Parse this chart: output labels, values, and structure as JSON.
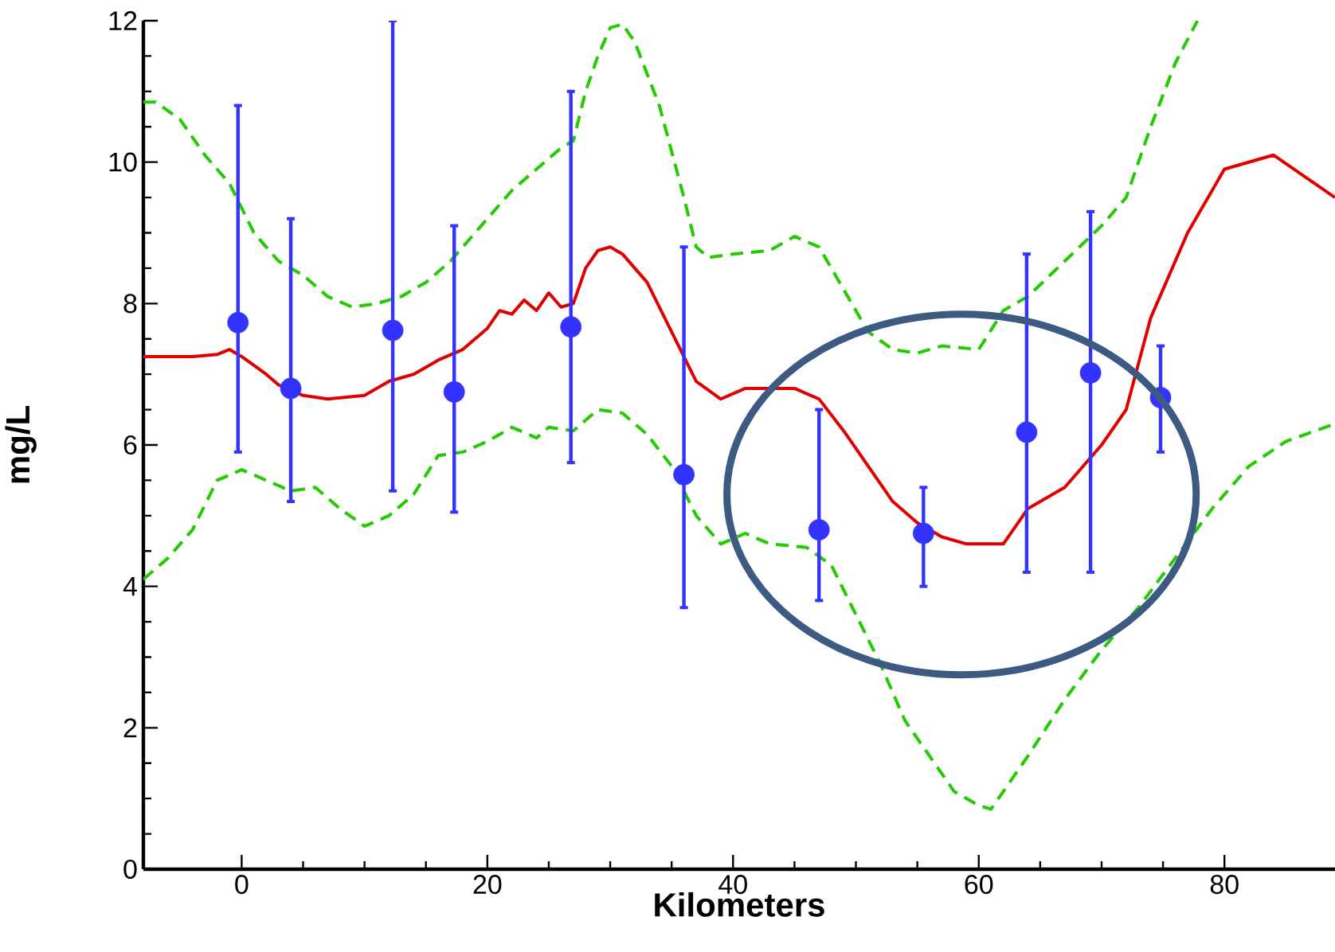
{
  "chart_data": {
    "type": "line",
    "xlabel": "Kilometers",
    "ylabel": "mg/L",
    "xlim": [
      -8,
      89
    ],
    "ylim": [
      0,
      12
    ],
    "xticks": [
      0,
      20,
      40,
      60,
      80
    ],
    "yticks": [
      0,
      2,
      4,
      6,
      8,
      10,
      12
    ],
    "series": [
      {
        "color": "#e00000",
        "line_style": "solid",
        "x": [
          -8,
          -4,
          -2,
          -1,
          0,
          2,
          3,
          5,
          7,
          10,
          12,
          14,
          16,
          18,
          20,
          21,
          22,
          23,
          24,
          25,
          26,
          27,
          28,
          29,
          30,
          31,
          33,
          35,
          37,
          39,
          41,
          43,
          45,
          47,
          49,
          51,
          53,
          55,
          57,
          59,
          61,
          62,
          64,
          67,
          70,
          72,
          74,
          77,
          80,
          84,
          89
        ],
        "values": [
          7.25,
          7.25,
          7.28,
          7.35,
          7.25,
          7.0,
          6.85,
          6.7,
          6.65,
          6.7,
          6.9,
          7.0,
          7.2,
          7.35,
          7.65,
          7.9,
          7.85,
          8.05,
          7.9,
          8.15,
          7.95,
          8.0,
          8.5,
          8.75,
          8.8,
          8.7,
          8.3,
          7.6,
          6.9,
          6.65,
          6.8,
          6.8,
          6.8,
          6.65,
          6.2,
          5.7,
          5.2,
          4.9,
          4.7,
          4.6,
          4.6,
          4.6,
          5.1,
          5.4,
          6.0,
          6.5,
          7.8,
          9.0,
          9.9,
          10.1,
          9.5
        ]
      },
      {
        "color": "#22cc00",
        "line_style": "dashed",
        "x": [
          -8,
          -7,
          -5,
          -3,
          -1,
          1,
          3,
          5,
          7,
          9,
          11,
          13,
          15,
          17,
          19,
          22,
          24,
          26,
          27,
          28,
          29,
          30,
          31,
          32,
          34,
          36,
          37,
          38,
          40,
          43,
          45,
          47,
          49,
          51,
          53,
          55,
          57,
          60,
          62,
          64,
          67,
          70,
          72,
          74,
          76,
          77.8
        ],
        "values": [
          10.85,
          10.85,
          10.6,
          10.1,
          9.7,
          9.0,
          8.6,
          8.4,
          8.1,
          7.95,
          8.0,
          8.1,
          8.3,
          8.6,
          9.0,
          9.6,
          9.9,
          10.2,
          10.3,
          11.0,
          11.5,
          11.9,
          11.95,
          11.7,
          10.8,
          9.5,
          8.8,
          8.65,
          8.7,
          8.75,
          8.95,
          8.8,
          8.2,
          7.6,
          7.35,
          7.3,
          7.4,
          7.35,
          7.9,
          8.1,
          8.6,
          9.1,
          9.5,
          10.5,
          11.4,
          12
        ]
      },
      {
        "color": "#22cc00",
        "line_style": "dashed",
        "x": [
          -8,
          -6,
          -4,
          -2,
          0,
          2,
          4,
          6,
          8,
          10,
          12,
          14,
          16,
          18,
          20,
          22,
          24,
          25,
          27,
          29,
          31,
          33,
          35,
          37,
          39,
          41,
          43,
          46,
          48,
          50,
          52,
          54,
          56,
          58,
          60,
          61,
          62,
          64,
          67,
          70,
          73,
          76,
          79,
          82,
          85,
          89
        ],
        "values": [
          4.1,
          4.4,
          4.8,
          5.5,
          5.65,
          5.5,
          5.35,
          5.4,
          5.1,
          4.85,
          5.0,
          5.3,
          5.85,
          5.9,
          6.05,
          6.25,
          6.1,
          6.25,
          6.2,
          6.5,
          6.45,
          6.15,
          5.7,
          5.0,
          4.6,
          4.75,
          4.6,
          4.55,
          4.3,
          3.6,
          2.9,
          2.1,
          1.6,
          1.1,
          0.9,
          0.85,
          1.1,
          1.6,
          2.4,
          3.1,
          3.7,
          4.4,
          5.1,
          5.7,
          6.05,
          6.3
        ]
      },
      {
        "type": "scatter",
        "color": "#3333ff",
        "marker": "circle",
        "x": [
          -0.3,
          4.0,
          12.3,
          17.3,
          26.8,
          36.0,
          47.0,
          55.5,
          63.9,
          69.1,
          74.8
        ],
        "values": [
          7.73,
          6.8,
          7.62,
          6.75,
          7.67,
          5.58,
          4.8,
          4.75,
          6.18,
          7.02,
          6.67
        ],
        "errors": [
          [
            5.9,
            10.8
          ],
          [
            5.2,
            9.2
          ],
          [
            5.35,
            12
          ],
          [
            5.05,
            9.1
          ],
          [
            5.75,
            11.0
          ],
          [
            3.7,
            8.8
          ],
          [
            3.8,
            6.5
          ],
          [
            4.0,
            5.4
          ],
          [
            4.2,
            8.7
          ],
          [
            4.2,
            9.3
          ],
          [
            5.9,
            7.4
          ]
        ]
      }
    ]
  }
}
